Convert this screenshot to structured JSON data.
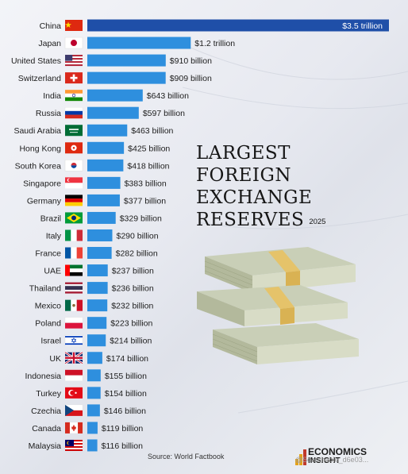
{
  "chart_data": {
    "type": "bar",
    "orientation": "horizontal",
    "title_lines": [
      "LARGEST",
      "FOREIGN EXCHANGE",
      "RESERVES"
    ],
    "year": "2025",
    "unit": "USD billion",
    "categories": [
      "China",
      "Japan",
      "United States",
      "Switzerland",
      "India",
      "Russia",
      "Saudi Arabia",
      "Hong Kong",
      "South Korea",
      "Singapore",
      "Germany",
      "Brazil",
      "Italy",
      "France",
      "UAE",
      "Thailand",
      "Mexico",
      "Poland",
      "Israel",
      "UK",
      "Indonesia",
      "Turkey",
      "Czechia",
      "Canada",
      "Malaysia"
    ],
    "values": [
      3500,
      1200,
      910,
      909,
      643,
      597,
      463,
      425,
      418,
      383,
      377,
      329,
      290,
      282,
      237,
      236,
      232,
      223,
      214,
      174,
      155,
      154,
      146,
      119,
      116
    ],
    "value_labels": [
      "$3.5 trillion",
      "$1.2 trillion",
      "$910 billion",
      "$909 billion",
      "$643 billion",
      "$597 billion",
      "$463 billion",
      "$425 billion",
      "$418 billion",
      "$383 billion",
      "$377 billion",
      "$329 billion",
      "$290 billion",
      "$282 billion",
      "$237 billion",
      "$236 billion",
      "$232 billion",
      "$223 billion",
      "$214 billion",
      "$174 billion",
      "$155 billion",
      "$154 billion",
      "$146 billion",
      "$119 billion",
      "$116 billion"
    ],
    "flags": [
      "cn",
      "jp",
      "us",
      "ch",
      "in",
      "ru",
      "sa",
      "hk",
      "kr",
      "sg",
      "de",
      "br",
      "it",
      "fr",
      "ae",
      "th",
      "mx",
      "pl",
      "il",
      "gb",
      "id",
      "tr",
      "cz",
      "ca",
      "my"
    ],
    "bar_color": "#2e8fde",
    "top_bar_color": "#1f4fa8",
    "source": "Source: World Factbook"
  },
  "logo": {
    "line1": "ECONOMICS",
    "line2": "INSIGHT",
    "watermark": "@Searchable_d6e03..."
  }
}
